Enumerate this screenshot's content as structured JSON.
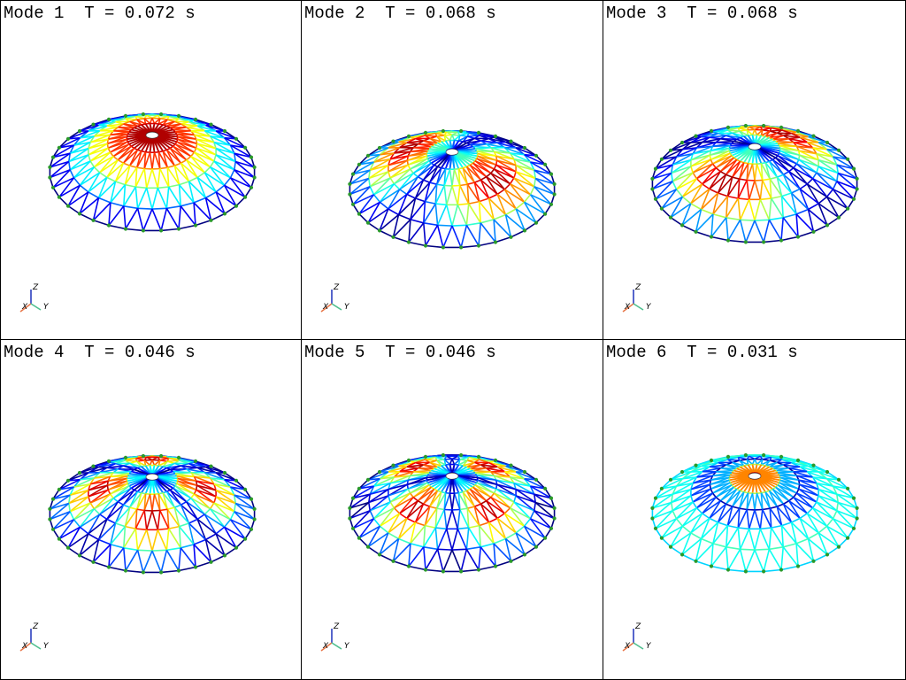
{
  "panels": [
    {
      "title": "Mode 1  T = 0.072 s",
      "shape": "mode1",
      "centerX": 171,
      "centerY": 179
    },
    {
      "title": "Mode 2  T = 0.068 s",
      "shape": "mode2",
      "centerX": 170,
      "centerY": 198
    },
    {
      "title": "Mode 3  T = 0.068 s",
      "shape": "mode3",
      "centerX": 171,
      "centerY": 192
    },
    {
      "title": "Mode 4  T = 0.046 s",
      "shape": "mode4",
      "centerX": 171,
      "centerY": 182
    },
    {
      "title": "Mode 5  T = 0.046 s",
      "shape": "mode5",
      "centerX": 170,
      "centerY": 181
    },
    {
      "title": "Mode 6  T = 0.031 s",
      "shape": "mode6",
      "centerX": 171,
      "centerY": 181
    }
  ],
  "axes": {
    "x": "X",
    "y": "Y",
    "z": "Z"
  },
  "colors": {
    "x_axis": "#e8784a",
    "y_axis": "#4fbf8f",
    "z_axis": "#2c3fbf",
    "node": "#2a9a2a"
  },
  "icons": [
    "axes-triad-icon"
  ]
}
